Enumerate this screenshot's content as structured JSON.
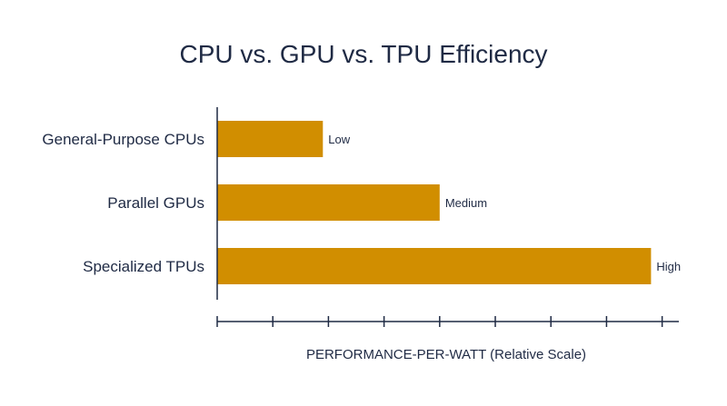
{
  "chart_data": {
    "type": "bar",
    "orientation": "horizontal",
    "title": "CPU vs. GPU vs. TPU Efficiency",
    "xlabel": "PERFORMANCE-PER-WATT (Relative Scale)",
    "ylabel": "",
    "categories": [
      "General-Purpose CPUs",
      "Parallel GPUs",
      "Specialized TPUs"
    ],
    "values": [
      1.9,
      4.0,
      7.8
    ],
    "data_labels": [
      "Low",
      "Medium",
      "High"
    ],
    "xlim": [
      0,
      8.3
    ],
    "x_tick_count": 8,
    "grid": false,
    "legend": "none",
    "bar_color": "#d18e00",
    "text_color": "#1f2a44",
    "axis_color": "#1f2a44"
  }
}
